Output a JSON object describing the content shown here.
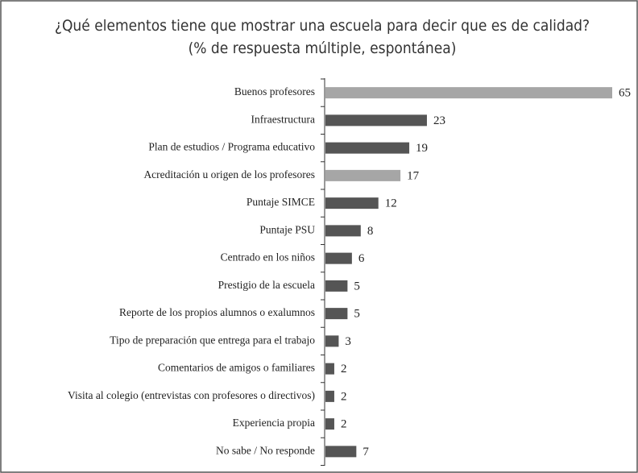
{
  "chart_data": {
    "type": "barh",
    "title": "¿Qué elementos tiene que mostrar una escuela para decir que es de calidad?",
    "subtitle": "(% de respuesta múltiple, espontánea)",
    "categories": [
      "Buenos profesores",
      "Infraestructura",
      "Plan de estudios / Programa educativo",
      "Acreditación u origen de los profesores",
      "Puntaje SIMCE",
      "Puntaje PSU",
      "Centrado en los niños",
      "Prestigio de la escuela",
      "Reporte de los propios alumnos o exalumnos",
      "Tipo de preparación que entrega para el trabajo",
      "Comentarios de amigos o familiares",
      "Visita al colegio (entrevistas con profesores o directivos)",
      "Experiencia propia",
      "No sabe / No responde"
    ],
    "values": [
      65,
      23,
      19,
      17,
      12,
      8,
      6,
      5,
      5,
      3,
      2,
      2,
      2,
      7
    ],
    "colors": [
      "#a6a6a6",
      "#555555",
      "#555555",
      "#a6a6a6",
      "#555555",
      "#555555",
      "#555555",
      "#555555",
      "#555555",
      "#555555",
      "#555555",
      "#555555",
      "#555555",
      "#555555"
    ]
  }
}
